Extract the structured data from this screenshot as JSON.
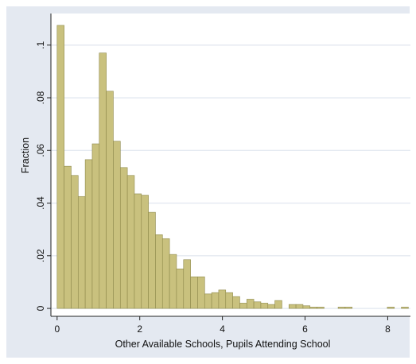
{
  "chart_data": {
    "type": "bar",
    "title": "",
    "xlabel": "Other Available Schools, Pupils Attending School",
    "ylabel": "Fraction",
    "xlim": [
      -0.15,
      8.55
    ],
    "ylim": [
      -0.003,
      0.112
    ],
    "xticks": [
      0,
      2,
      4,
      6,
      8
    ],
    "yticks": [
      0,
      0.02,
      0.04,
      0.06,
      0.08,
      0.1
    ],
    "ytick_labels": [
      "0",
      ".02",
      ".04",
      ".06",
      ".08",
      ".1"
    ],
    "grid": true,
    "bin_width": 0.17,
    "bins_start": [
      0,
      0.17,
      0.34,
      0.51,
      0.68,
      0.85,
      1.02,
      1.19,
      1.36,
      1.53,
      1.7,
      1.87,
      2.04,
      2.21,
      2.38,
      2.55,
      2.72,
      2.89,
      3.06,
      3.23,
      3.4,
      3.57,
      3.74,
      3.91,
      4.08,
      4.25,
      4.42,
      4.59,
      4.76,
      4.93,
      5.1,
      5.27,
      5.44,
      5.61,
      5.78,
      5.95,
      6.12,
      6.29,
      6.46,
      6.63,
      6.8,
      6.97,
      7.14,
      7.31,
      7.48,
      7.65,
      7.82,
      7.99,
      8.16,
      8.33
    ],
    "values": [
      0.1075,
      0.054,
      0.0505,
      0.0425,
      0.0565,
      0.0625,
      0.097,
      0.0825,
      0.0635,
      0.0535,
      0.0505,
      0.0435,
      0.043,
      0.0365,
      0.028,
      0.0265,
      0.0205,
      0.015,
      0.0185,
      0.012,
      0.012,
      0.0055,
      0.006,
      0.007,
      0.006,
      0.0045,
      0.002,
      0.0035,
      0.0025,
      0.002,
      0.0015,
      0.003,
      0.0,
      0.0015,
      0.0015,
      0.001,
      0.0005,
      0.0005,
      0.0,
      0.0,
      0.0005,
      0.0005,
      0.0,
      0.0,
      0.0,
      0.0,
      0.0,
      0.0005,
      0.0,
      0.0005
    ],
    "colors": {
      "bar_fill": "#c9c17e",
      "bar_edge": "#8f8a4c",
      "plot_bg": "#ffffff",
      "outer_bg": "#e4e9f1",
      "grid": "#e4e9f1",
      "axis": "#222222"
    }
  }
}
